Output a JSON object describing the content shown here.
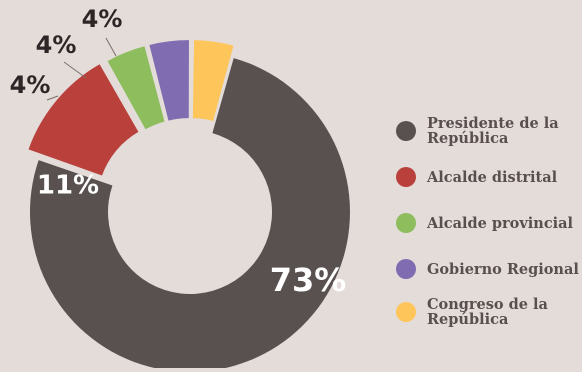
{
  "chart_data": {
    "type": "pie",
    "variant": "donut",
    "categories": [
      "Presidente de la República",
      "Alcalde distrital",
      "Alcalde provincial",
      "Gobierno Regional",
      "Congreso de la República"
    ],
    "values": [
      73,
      11,
      4,
      4,
      4
    ],
    "data_labels": [
      "73%",
      "11%",
      "4%",
      "4%",
      "4%"
    ],
    "colors": [
      "#595150",
      "#b9403b",
      "#8dbd5c",
      "#7f6cb1",
      "#fdc55a"
    ],
    "label_colors": [
      "#ffffff",
      "#ffffff",
      "#2e2626",
      "#2e2626",
      "#2e2626"
    ],
    "legend_position": "right"
  },
  "colors": {
    "background": "#e3dcd9",
    "legend_text": "#5a4f4f"
  }
}
